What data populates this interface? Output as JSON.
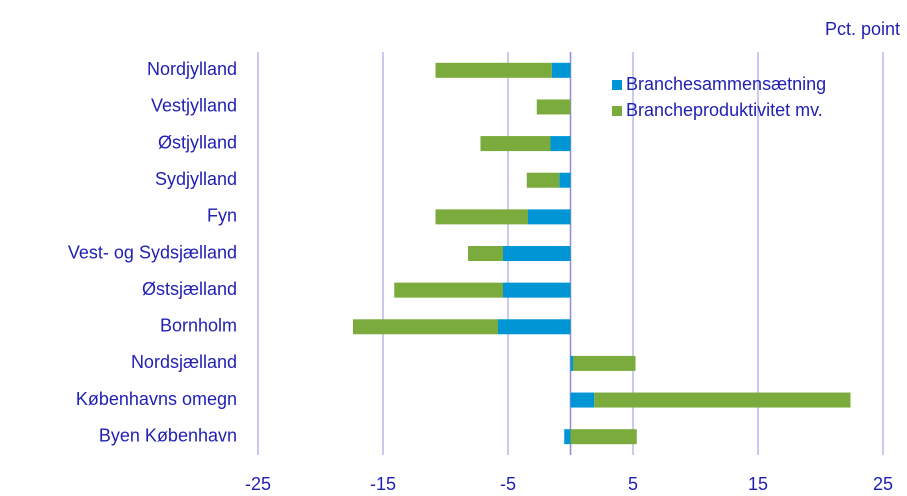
{
  "chart_data": {
    "type": "bar",
    "orientation": "horizontal",
    "stacked": true,
    "axis_label": "Pct. point",
    "categories": [
      "Nordjylland",
      "Vestjylland",
      "Østjylland",
      "Sydjylland",
      "Fyn",
      "Vest- og Sydsjælland",
      "Østsjælland",
      "Bornholm",
      "Nordsjælland",
      "Københavns omegn",
      "Byen København"
    ],
    "series": [
      {
        "name": "Branchesammensætning",
        "color": "#0096d6",
        "values": [
          -1.5,
          0,
          -1.6,
          -0.9,
          -3.4,
          -5.4,
          -5.4,
          -5.8,
          0.2,
          1.9,
          -0.5
        ]
      },
      {
        "name": "Brancheproduktivitet mv.",
        "color": "#7aab3c",
        "values": [
          -9.3,
          -2.7,
          -5.6,
          -2.6,
          -7.4,
          -2.8,
          -8.7,
          -11.6,
          5.0,
          20.5,
          5.3
        ]
      }
    ],
    "xlim": [
      -25,
      25
    ],
    "xticks": [
      -25,
      -15,
      -5,
      5,
      15,
      25
    ],
    "grid": true,
    "legend": "upper right"
  }
}
